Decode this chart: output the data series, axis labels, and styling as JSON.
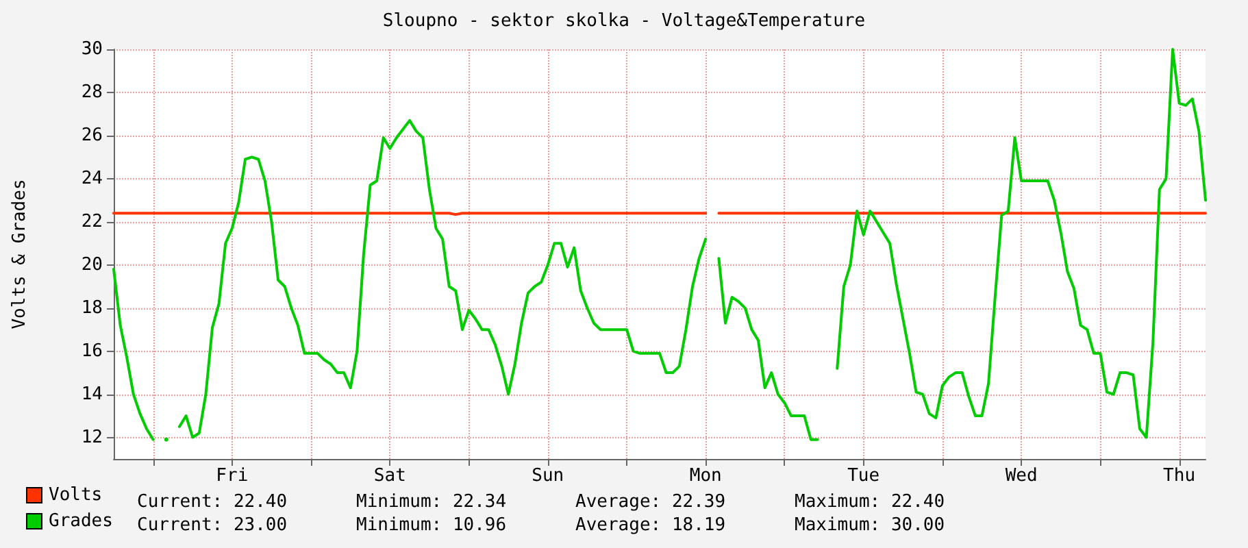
{
  "chart_data": {
    "type": "line",
    "title": "Sloupno - sektor skolka - Voltage&Temperature",
    "ylabel": "Volts & Grades",
    "categories": [
      null,
      null,
      null,
      null,
      null,
      null,
      null,
      null,
      null,
      null,
      null,
      null,
      null,
      null,
      null,
      null,
      null,
      null,
      "Fri",
      null,
      null,
      null,
      null,
      null,
      null,
      null,
      null,
      null,
      null,
      null,
      null,
      null,
      null,
      null,
      null,
      null,
      null,
      null,
      null,
      null,
      null,
      null,
      "Sat",
      null,
      null,
      null,
      null,
      null,
      null,
      null,
      null,
      null,
      null,
      null,
      null,
      null,
      null,
      null,
      null,
      null,
      null,
      null,
      null,
      null,
      null,
      null,
      "Sun",
      null,
      null,
      null,
      null,
      null,
      null,
      null,
      null,
      null,
      null,
      null,
      null,
      null,
      null,
      null,
      null,
      null,
      null,
      null,
      null,
      null,
      null,
      null,
      "Mon",
      null,
      null,
      null,
      null,
      null,
      null,
      null,
      null,
      null,
      null,
      null,
      null,
      null,
      null,
      null,
      null,
      null,
      null,
      null,
      null,
      null,
      null,
      null,
      "Tue",
      null,
      null,
      null,
      null,
      null,
      null,
      null,
      null,
      null,
      null,
      null,
      null,
      null,
      null,
      null,
      null,
      null,
      null,
      null,
      null,
      null,
      null,
      null,
      "Wed",
      null,
      null,
      null,
      null,
      null,
      null,
      null,
      null,
      null,
      null,
      null,
      null,
      null,
      null,
      null,
      null,
      null,
      null,
      null,
      null,
      null,
      null,
      null,
      "Thu",
      null,
      null,
      null,
      null
    ],
    "ylim": [
      11,
      30
    ],
    "yticks": [
      12,
      14,
      16,
      18,
      20,
      22,
      24,
      26,
      28,
      30
    ],
    "grid": true,
    "legend": "bottom left",
    "marker": "none",
    "line_style": "solid",
    "annotations": [
      "Current: 22.40",
      "Minimum: 22.34",
      "Average: 22.39",
      "Maximum: 22.40",
      "Current: 23.00",
      "Minimum: 10.96",
      "Average: 18.19",
      "Maximum: 30.00"
    ],
    "series": [
      {
        "name": "Volts",
        "color": "#ff3300",
        "values": [
          22.4,
          22.4,
          22.4,
          22.4,
          22.4,
          22.4,
          22.4,
          22.4,
          22.4,
          22.4,
          22.4,
          22.4,
          22.4,
          22.4,
          22.4,
          22.4,
          22.4,
          22.4,
          22.4,
          22.4,
          22.4,
          22.4,
          22.4,
          22.4,
          22.4,
          22.4,
          22.4,
          22.4,
          22.4,
          22.4,
          22.4,
          22.4,
          22.4,
          22.4,
          22.4,
          22.4,
          22.4,
          22.4,
          22.4,
          22.4,
          22.4,
          22.4,
          22.4,
          22.4,
          22.4,
          22.4,
          22.4,
          22.4,
          22.4,
          22.4,
          22.4,
          22.4,
          22.34,
          22.4,
          22.4,
          22.4,
          22.4,
          22.4,
          22.4,
          22.4,
          22.4,
          22.4,
          22.4,
          22.4,
          22.4,
          22.4,
          22.4,
          22.4,
          22.4,
          22.4,
          22.4,
          22.4,
          22.4,
          22.4,
          22.4,
          22.4,
          22.4,
          22.4,
          22.4,
          22.4,
          22.4,
          22.4,
          22.4,
          22.4,
          22.4,
          22.4,
          22.4,
          22.4,
          22.4,
          22.4,
          22.4,
          null,
          22.4,
          22.4,
          22.4,
          22.4,
          22.4,
          22.4,
          22.4,
          22.4,
          22.4,
          22.4,
          22.4,
          22.4,
          22.4,
          22.4,
          22.4,
          22.4,
          22.4,
          22.4,
          22.4,
          22.4,
          22.4,
          22.4,
          22.4,
          22.4,
          22.4,
          22.4,
          22.4,
          22.4,
          22.4,
          22.4,
          22.4,
          22.4,
          22.4,
          22.4,
          22.4,
          22.4,
          22.4,
          22.4,
          22.4,
          22.4,
          22.4,
          22.4,
          22.4,
          22.4,
          22.4,
          22.4,
          22.4,
          22.4,
          22.4,
          22.4,
          22.4,
          22.4,
          22.4,
          22.4,
          22.4,
          22.4,
          22.4,
          22.4,
          22.4,
          22.4,
          22.4,
          22.4,
          22.4,
          22.4,
          22.4,
          22.4,
          22.4,
          22.4,
          22.4,
          22.4,
          22.4,
          22.4,
          22.4,
          22.4,
          22.4
        ]
      },
      {
        "name": "Grades",
        "color": "#00cc00",
        "values": [
          19.8,
          17.2,
          15.7,
          14.0,
          13.1,
          12.4,
          11.9,
          null,
          11.9,
          null,
          12.5,
          13.0,
          12.0,
          12.2,
          14.0,
          17.1,
          18.2,
          21.0,
          21.7,
          22.9,
          24.9,
          25.0,
          24.9,
          23.9,
          22.0,
          19.3,
          19.0,
          18.0,
          17.2,
          15.9,
          15.9,
          15.9,
          15.6,
          15.4,
          15.0,
          15.0,
          14.3,
          16.0,
          20.5,
          23.7,
          23.9,
          25.9,
          25.4,
          25.9,
          26.3,
          26.7,
          26.2,
          25.9,
          23.5,
          21.7,
          21.2,
          19.0,
          18.8,
          17.0,
          17.9,
          17.5,
          17.0,
          17.0,
          16.3,
          15.3,
          14.0,
          15.4,
          17.3,
          18.7,
          19.0,
          19.2,
          20.0,
          21.0,
          21.0,
          19.9,
          20.8,
          18.8,
          18.0,
          17.3,
          17.0,
          17.0,
          17.0,
          17.0,
          17.0,
          16.0,
          15.9,
          15.9,
          15.9,
          15.9,
          15.0,
          15.0,
          15.3,
          17.0,
          19.0,
          20.3,
          21.2,
          null,
          20.3,
          17.3,
          18.5,
          18.3,
          18.0,
          17.0,
          16.5,
          14.3,
          15.0,
          14.0,
          13.6,
          13.0,
          13.0,
          13.0,
          11.9,
          11.9,
          null,
          null,
          15.2,
          19.0,
          20.0,
          22.5,
          21.4,
          22.5,
          22.0,
          21.5,
          21.0,
          19.1,
          17.5,
          15.9,
          14.1,
          14.0,
          13.1,
          12.9,
          14.4,
          14.8,
          15.0,
          15.0,
          13.9,
          13.0,
          13.0,
          14.5,
          18.5,
          22.3,
          22.5,
          25.9,
          23.9,
          23.9,
          23.9,
          23.9,
          23.9,
          23.0,
          21.5,
          19.7,
          18.9,
          17.2,
          17.0,
          15.9,
          15.9,
          14.1,
          14.0,
          15.0,
          15.0,
          14.9,
          12.4,
          12.0,
          16.4,
          23.5,
          24.0,
          30.0,
          27.5,
          27.4,
          27.7,
          26.2,
          23.0
        ]
      }
    ]
  }
}
